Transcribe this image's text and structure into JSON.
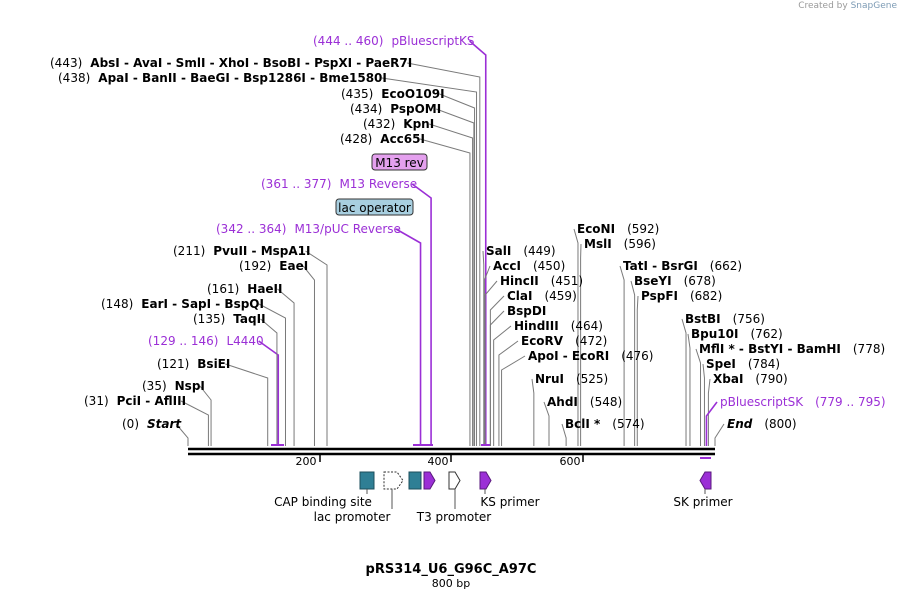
{
  "credit": {
    "prefix": "Created by",
    "brand": "SnapGene"
  },
  "plasmid": {
    "name": "pRS314_U6_G96C_A97C",
    "size": "800 bp",
    "length": 800
  },
  "colors": {
    "primer": "#9b2fd6",
    "feature_teal": "#2f7f95",
    "lac_operator_fill": "#a8cfe0",
    "m13rev_fill": "#e4a0ee",
    "line": "#7a7a7a"
  },
  "ticks": [
    "200",
    "400",
    "600"
  ],
  "sites": [
    {
      "pos": "(0)",
      "names": [
        "Start"
      ],
      "bp": 0,
      "italic": true
    },
    {
      "pos": "(31)",
      "names": [
        "PciI",
        "AflIII"
      ],
      "bp": 31
    },
    {
      "pos": "(35)",
      "names": [
        "NspI"
      ],
      "bp": 35
    },
    {
      "pos": "(121)",
      "names": [
        "BsiEI"
      ],
      "bp": 121
    },
    {
      "pos": "(129 .. 146)",
      "names": [
        "L4440"
      ],
      "bp": 137,
      "primer": true
    },
    {
      "pos": "(135)",
      "names": [
        "TaqII"
      ],
      "bp": 135
    },
    {
      "pos": "(148)",
      "names": [
        "EarI",
        "SapI",
        "BspQI"
      ],
      "bp": 148
    },
    {
      "pos": "(161)",
      "names": [
        "HaeII"
      ],
      "bp": 161
    },
    {
      "pos": "(192)",
      "names": [
        "EaeI"
      ],
      "bp": 192
    },
    {
      "pos": "(211)",
      "names": [
        "PvuII",
        "MspA1I"
      ],
      "bp": 211
    },
    {
      "pos": "(342 .. 364)",
      "names": [
        "M13/pUC Reverse"
      ],
      "bp": 353,
      "primer": true
    },
    {
      "pos": "(361 .. 377)",
      "names": [
        "M13 Reverse"
      ],
      "bp": 369,
      "primer": true
    },
    {
      "pos": "(428)",
      "names": [
        "Acc65I"
      ],
      "bp": 428
    },
    {
      "pos": "(432)",
      "names": [
        "KpnI"
      ],
      "bp": 432
    },
    {
      "pos": "(434)",
      "names": [
        "PspOMI"
      ],
      "bp": 434
    },
    {
      "pos": "(435)",
      "names": [
        "EcoO109I"
      ],
      "bp": 435
    },
    {
      "pos": "(438)",
      "names": [
        "ApaI",
        "BanII",
        "BaeGI",
        "Bsp1286I",
        "Bme1580I"
      ],
      "bp": 438
    },
    {
      "pos": "(443)",
      "names": [
        "AbsI",
        "AvaI",
        "SmlI",
        "XhoI",
        "BsoBI",
        "PspXI",
        "PaeR7I"
      ],
      "bp": 443
    },
    {
      "pos": "(444 .. 460)",
      "names": [
        "pBluescriptKS"
      ],
      "bp": 452,
      "primer": true
    },
    {
      "pos": "(449)",
      "names": [
        "SalI"
      ],
      "bp": 449
    },
    {
      "pos": "(450)",
      "names": [
        "AccI"
      ],
      "bp": 450
    },
    {
      "pos": "(451)",
      "names": [
        "HincII"
      ],
      "bp": 451
    },
    {
      "pos": "(459)",
      "names": [
        "ClaI"
      ],
      "bp": 459
    },
    {
      "pos": "",
      "names": [
        "BspDI"
      ],
      "bp": 459
    },
    {
      "pos": "(464)",
      "names": [
        "HindIII"
      ],
      "bp": 464
    },
    {
      "pos": "(472)",
      "names": [
        "EcoRV"
      ],
      "bp": 472
    },
    {
      "pos": "(476)",
      "names": [
        "ApoI",
        "EcoRI"
      ],
      "bp": 476
    },
    {
      "pos": "(525)",
      "names": [
        "NruI"
      ],
      "bp": 525
    },
    {
      "pos": "(548)",
      "names": [
        "AhdI"
      ],
      "bp": 548
    },
    {
      "pos": "(574)",
      "names": [
        "BclI *"
      ],
      "bp": 574
    },
    {
      "pos": "(592)",
      "names": [
        "EcoNI"
      ],
      "bp": 592
    },
    {
      "pos": "(596)",
      "names": [
        "MslI"
      ],
      "bp": 596
    },
    {
      "pos": "(662)",
      "names": [
        "TatI",
        "BsrGI"
      ],
      "bp": 662
    },
    {
      "pos": "(678)",
      "names": [
        "BseYI"
      ],
      "bp": 678
    },
    {
      "pos": "(682)",
      "names": [
        "PspFI"
      ],
      "bp": 682
    },
    {
      "pos": "(756)",
      "names": [
        "BstBI"
      ],
      "bp": 756
    },
    {
      "pos": "(762)",
      "names": [
        "Bpu10I"
      ],
      "bp": 762
    },
    {
      "pos": "(778)",
      "names": [
        "MflI *",
        "BstYI",
        "BamHI"
      ],
      "bp": 778
    },
    {
      "pos": "(784)",
      "names": [
        "SpeI"
      ],
      "bp": 784
    },
    {
      "pos": "(790)",
      "names": [
        "XbaI"
      ],
      "bp": 790
    },
    {
      "pos": "(779 .. 795)",
      "names": [
        "pBluescriptSK"
      ],
      "bp": 787,
      "primer": true
    },
    {
      "pos": "(800)",
      "names": [
        "End"
      ],
      "bp": 800,
      "italic": true
    }
  ],
  "features": [
    {
      "label": "lac operator",
      "kind": "box"
    },
    {
      "label": "M13 rev",
      "kind": "box"
    },
    {
      "label": "CAP binding site",
      "kind": "track"
    },
    {
      "label": "lac promoter",
      "kind": "track"
    },
    {
      "label": "T3 promoter",
      "kind": "track"
    },
    {
      "label": "KS primer",
      "kind": "track"
    },
    {
      "label": "SK primer",
      "kind": "track"
    }
  ]
}
